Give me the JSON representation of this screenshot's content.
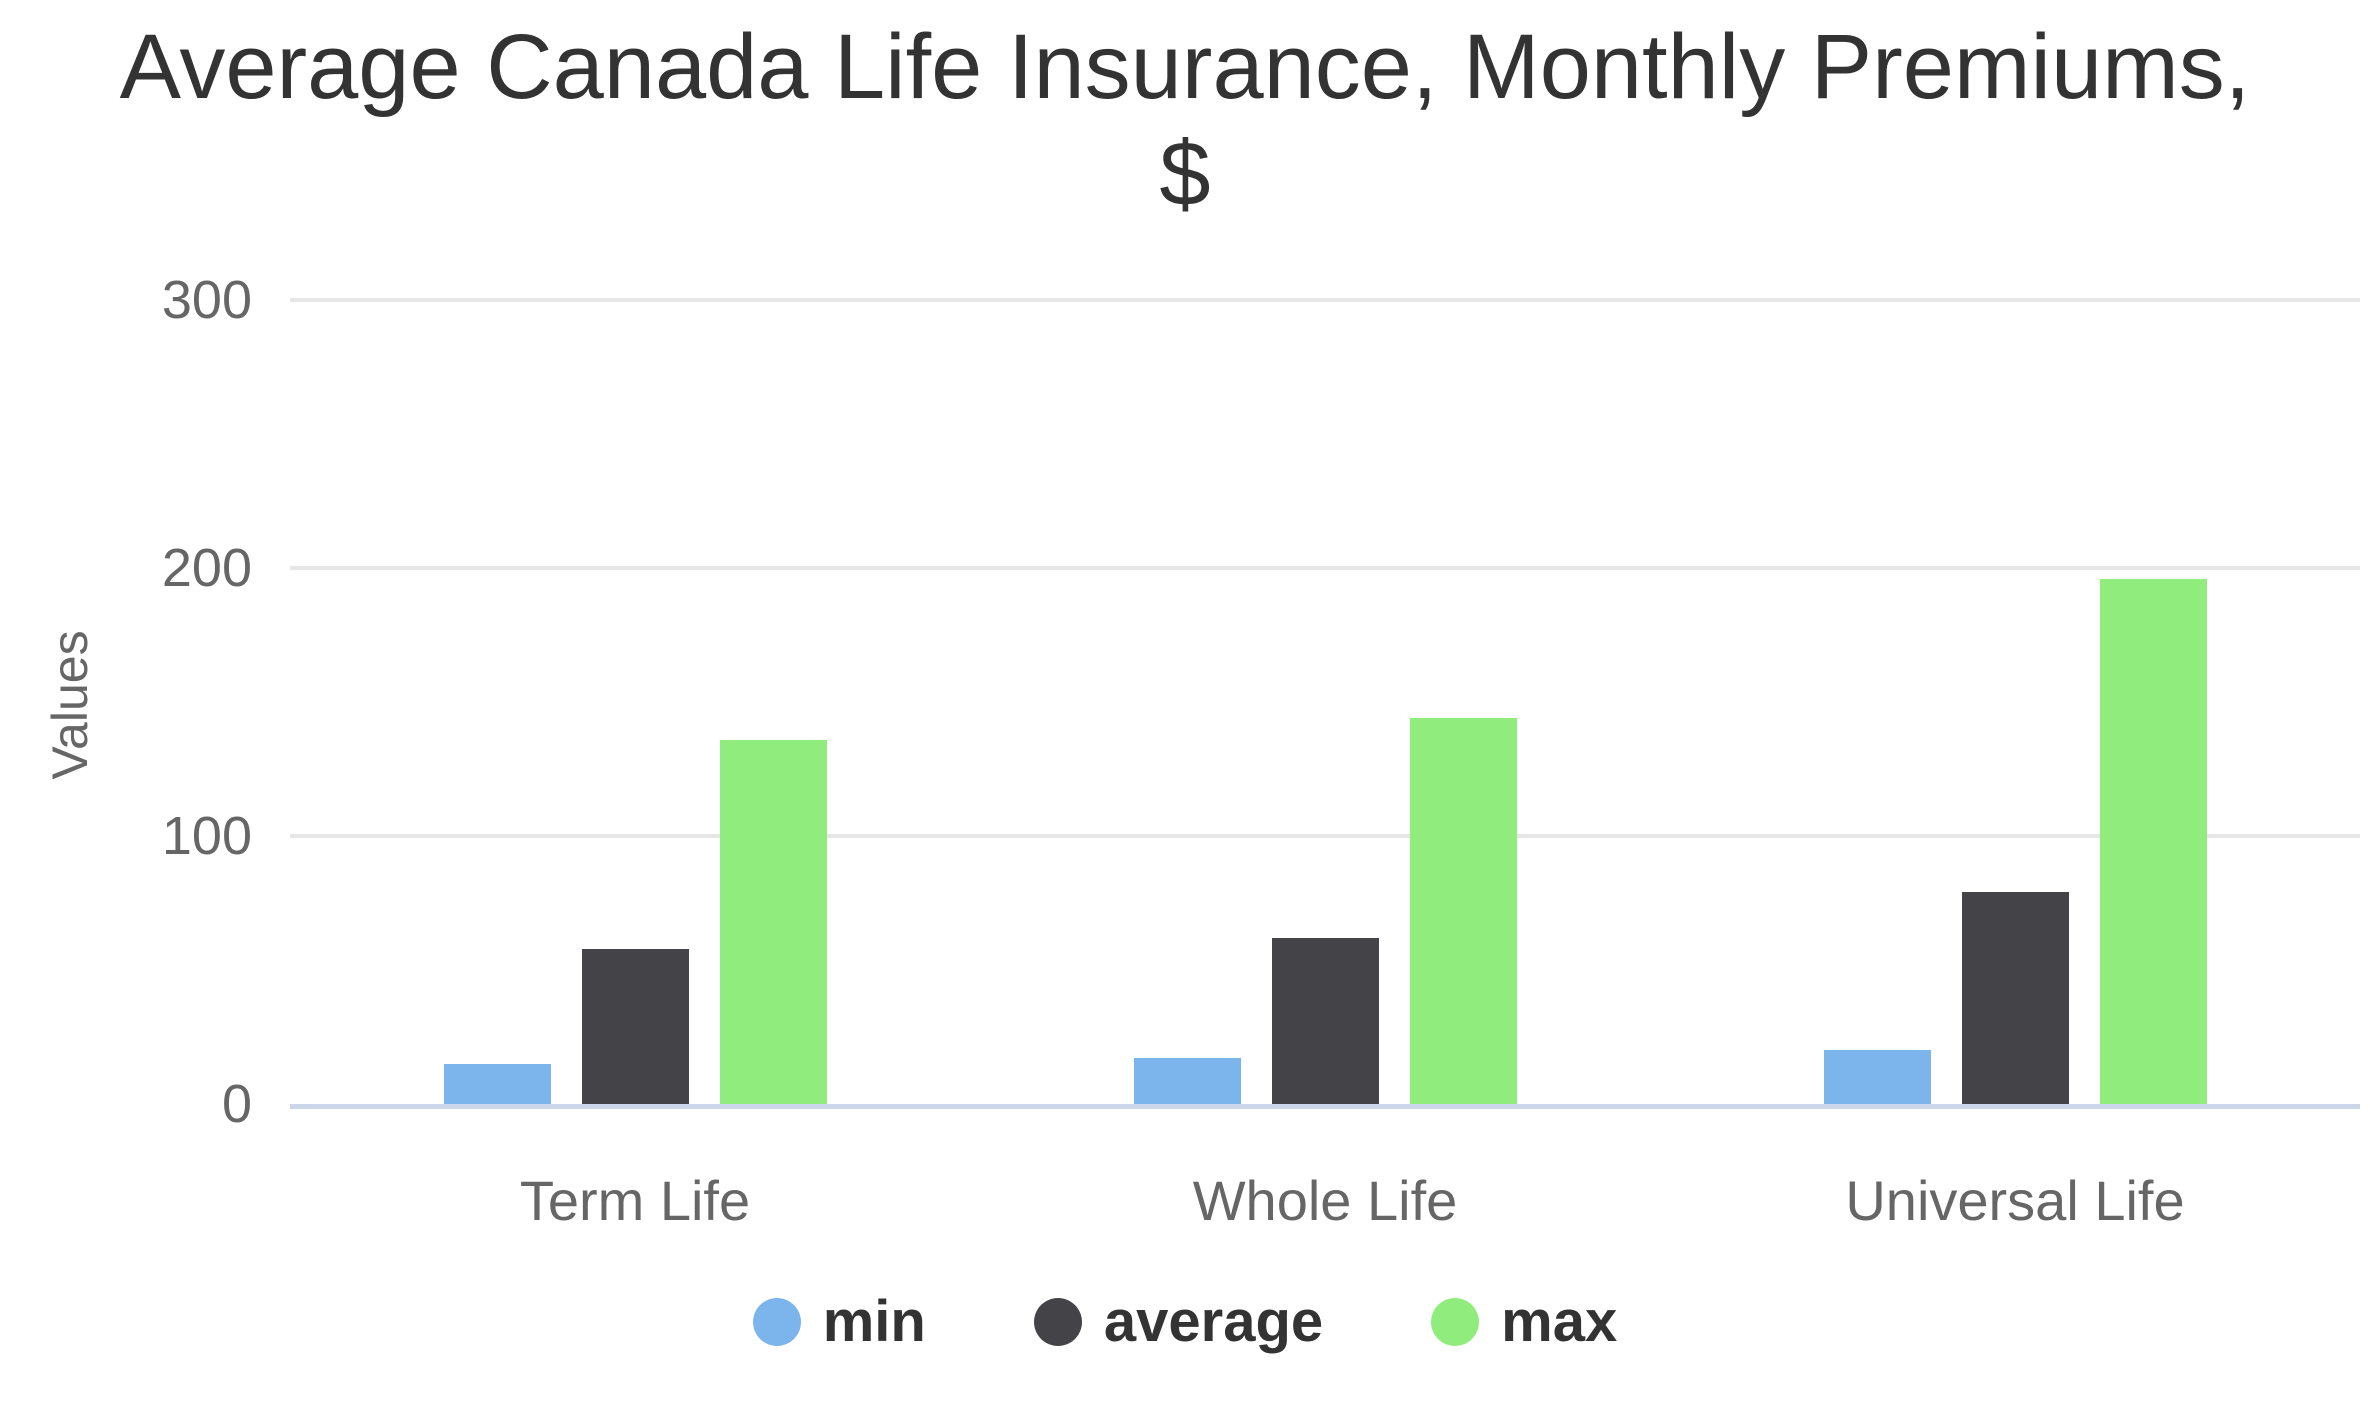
{
  "chart_data": {
    "type": "bar",
    "title": "Average Canada Life Insurance, Monthly Premiums, $",
    "title_lines": [
      "Average Canada Life Insurance, Monthly Premiums,",
      "$"
    ],
    "ylabel": "Values",
    "xlabel": "",
    "categories": [
      "Term Life",
      "Whole Life",
      "Universal Life"
    ],
    "series": [
      {
        "name": "min",
        "color": "#7cb5ec",
        "values": [
          15,
          17,
          20
        ]
      },
      {
        "name": "average",
        "color": "#434348",
        "values": [
          58,
          62,
          79
        ]
      },
      {
        "name": "max",
        "color": "#90ed7d",
        "values": [
          136,
          144,
          196
        ]
      }
    ],
    "yticks": [
      0,
      100,
      200,
      300
    ],
    "ylim": [
      0,
      300
    ],
    "grid": true,
    "legend_position": "bottom"
  },
  "colors": {
    "background": "#ffffff",
    "title_text": "#333333",
    "axis_text": "#666666",
    "legend_text": "#333333",
    "gridline": "#e6e6e6",
    "axis_line": "#ccd6eb",
    "series_min": "#7cb5ec",
    "series_average": "#434348",
    "series_max": "#90ed7d"
  }
}
